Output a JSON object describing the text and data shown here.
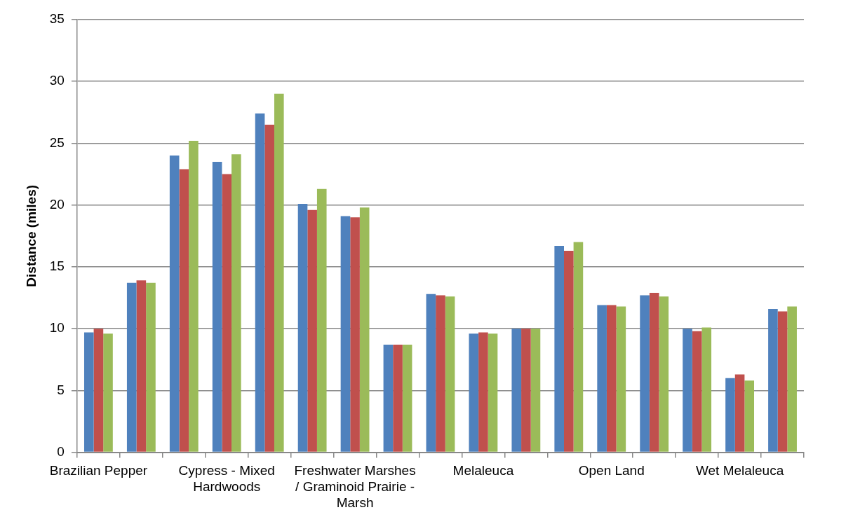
{
  "chart_data": {
    "type": "bar",
    "ylabel": "Distance (miles)",
    "categories": [
      "Brazilian Pepper",
      null,
      null,
      "Cypress - Mixed Hardwoods",
      null,
      null,
      "Freshwater Marshes / Graminoid Prairie - Marsh",
      null,
      null,
      "Melaleuca",
      null,
      null,
      "Open Land",
      null,
      null,
      "Wet Melaleuca",
      null
    ],
    "series": [
      {
        "color": "#4f81bd",
        "values": [
          9.7,
          13.7,
          24.0,
          23.5,
          27.4,
          20.1,
          19.1,
          8.7,
          12.8,
          9.6,
          10.0,
          16.7,
          11.9,
          12.7,
          10.0,
          6.0,
          11.6
        ]
      },
      {
        "color": "#c0504d",
        "values": [
          10.0,
          13.9,
          22.9,
          22.5,
          26.5,
          19.6,
          19.0,
          8.7,
          12.7,
          9.7,
          10.0,
          16.3,
          11.9,
          12.9,
          9.8,
          6.3,
          11.4
        ]
      },
      {
        "color": "#9bbb59",
        "values": [
          9.6,
          13.7,
          25.2,
          24.1,
          29.0,
          21.3,
          19.8,
          8.7,
          12.6,
          9.6,
          10.0,
          17.0,
          11.8,
          12.6,
          10.1,
          5.8,
          11.8
        ]
      }
    ],
    "ylim": [
      0,
      35
    ],
    "yticks": [
      0,
      5,
      10,
      15,
      20,
      25,
      30,
      35
    ],
    "grid": "y",
    "legend": false
  }
}
